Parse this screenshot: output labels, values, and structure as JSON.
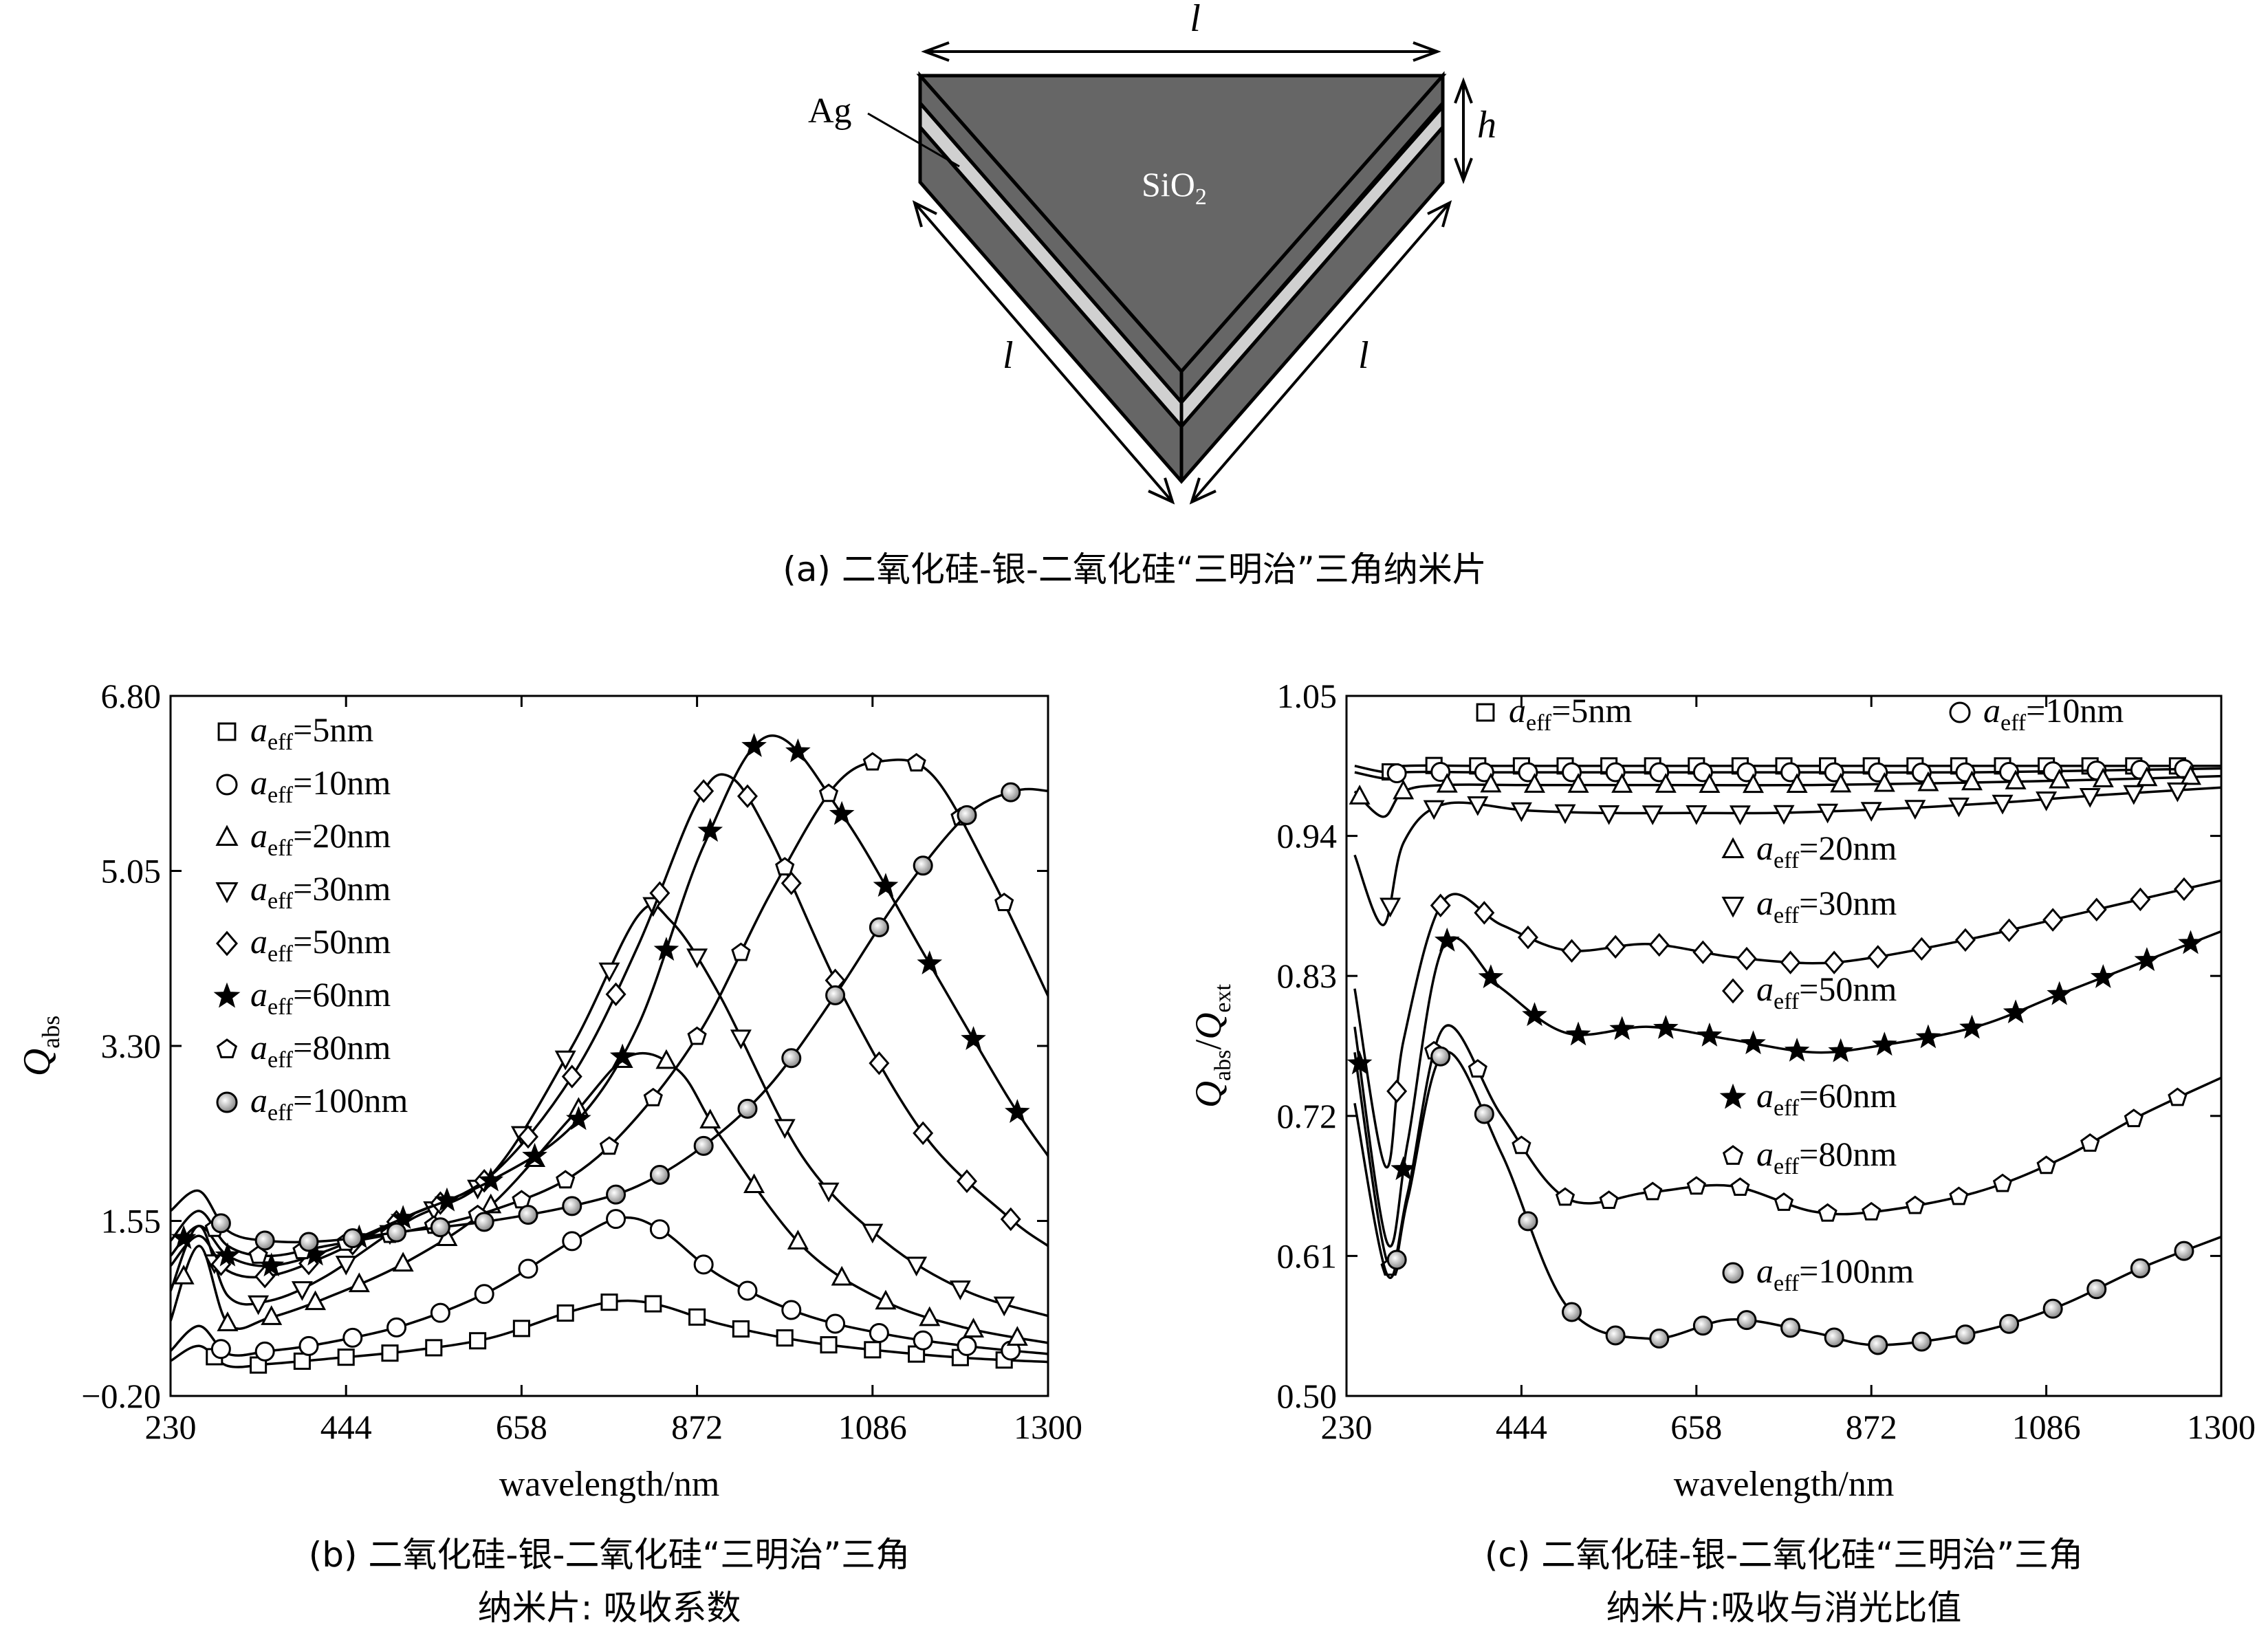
{
  "figure_a": {
    "caption": "(a) 二氧化硅-银-二氧化硅“三明治”三角纳米片",
    "label_top": "l",
    "label_left": "l",
    "label_right": "l",
    "label_h": "h",
    "label_ag": "Ag",
    "label_sio2_main": "SiO",
    "label_sio2_sub": "2",
    "colors": {
      "sio2": "#666666",
      "ag": "#d0d0d0",
      "outline": "#000000"
    }
  },
  "chart_b": {
    "caption_line1": "(b) 二氧化硅-银-二氧化硅“三明治”三角",
    "caption_line2": "纳米片: 吸收系数"
  },
  "chart_c": {
    "caption_line1": "(c) 二氧化硅-银-二氧化硅“三明治”三角",
    "caption_line2": "纳米片:吸收与消光比值"
  },
  "chart_data": [
    {
      "type": "line",
      "id": "b",
      "xlabel": "wavelength/nm",
      "ylabel_main": "Q",
      "ylabel_sub": "abs",
      "xlim": [
        230,
        1300
      ],
      "ylim": [
        -0.2,
        6.8
      ],
      "xticks": [
        "230",
        "444",
        "658",
        "872",
        "1086",
        "1300"
      ],
      "yticks": [
        "−0.20",
        "1.55",
        "3.30",
        "5.05",
        "6.80"
      ],
      "grid": false,
      "legend_position": "top-left",
      "series": [
        {
          "name": "a_eff=5nm",
          "legend_main": "a",
          "legend_sub": "eff",
          "legend_value": "=5nm",
          "marker": "square",
          "x": [
            230,
            265,
            300,
            350,
            420,
            520,
            620,
            720,
            780,
            830,
            900,
            1000,
            1100,
            1200,
            1300
          ],
          "y": [
            0.15,
            0.3,
            0.1,
            0.12,
            0.17,
            0.25,
            0.38,
            0.65,
            0.75,
            0.7,
            0.52,
            0.35,
            0.25,
            0.18,
            0.14
          ]
        },
        {
          "name": "a_eff=10nm",
          "legend_main": "a",
          "legend_sub": "eff",
          "legend_value": "=10nm",
          "marker": "circle",
          "x": [
            230,
            265,
            300,
            350,
            420,
            520,
            620,
            720,
            780,
            830,
            900,
            1000,
            1100,
            1200,
            1300
          ],
          "y": [
            0.25,
            0.5,
            0.22,
            0.25,
            0.33,
            0.52,
            0.85,
            1.35,
            1.58,
            1.45,
            1.0,
            0.62,
            0.42,
            0.3,
            0.22
          ]
        },
        {
          "name": "a_eff=20nm",
          "legend_main": "a",
          "legend_sub": "eff",
          "legend_value": "=20nm",
          "marker": "triangle-up",
          "x": [
            230,
            265,
            300,
            350,
            420,
            520,
            620,
            720,
            790,
            850,
            900,
            1000,
            1100,
            1200,
            1300
          ],
          "y": [
            0.55,
            1.3,
            0.52,
            0.58,
            0.78,
            1.15,
            1.7,
            2.6,
            3.2,
            3.05,
            2.4,
            1.3,
            0.75,
            0.48,
            0.33
          ]
        },
        {
          "name": "a_eff=30nm",
          "legend_main": "a",
          "legend_sub": "eff",
          "legend_value": "=30nm",
          "marker": "triangle-down",
          "x": [
            230,
            265,
            300,
            350,
            420,
            520,
            620,
            720,
            800,
            840,
            900,
            1000,
            1100,
            1200,
            1300
          ],
          "y": [
            0.85,
            1.5,
            0.8,
            0.75,
            1.0,
            1.55,
            2.0,
            3.3,
            4.6,
            4.55,
            3.8,
            2.2,
            1.35,
            0.85,
            0.6
          ]
        },
        {
          "name": "a_eff=50nm",
          "legend_main": "a",
          "legend_sub": "eff",
          "legend_value": "=50nm",
          "marker": "diamond",
          "x": [
            230,
            265,
            300,
            350,
            420,
            520,
            620,
            720,
            800,
            870,
            910,
            960,
            1050,
            1150,
            1250,
            1300
          ],
          "y": [
            1.1,
            1.4,
            1.05,
            1.0,
            1.2,
            1.6,
            2.0,
            3.0,
            4.3,
            5.7,
            6.0,
            5.4,
            3.8,
            2.4,
            1.6,
            1.3
          ]
        },
        {
          "name": "a_eff=60nm",
          "legend_main": "a",
          "legend_sub": "eff",
          "legend_value": "=60nm",
          "marker": "star",
          "x": [
            230,
            265,
            300,
            350,
            420,
            520,
            620,
            720,
            800,
            880,
            960,
            1050,
            1150,
            1250,
            1300
          ],
          "y": [
            1.2,
            1.5,
            1.2,
            1.1,
            1.25,
            1.6,
            1.95,
            2.5,
            3.5,
            5.3,
            6.4,
            5.6,
            4.2,
            2.8,
            2.2
          ]
        },
        {
          "name": "a_eff=80nm",
          "legend_main": "a",
          "legend_sub": "eff",
          "legend_value": "=80nm",
          "marker": "pentagon",
          "x": [
            230,
            265,
            300,
            350,
            420,
            520,
            620,
            720,
            800,
            880,
            960,
            1040,
            1100,
            1160,
            1230,
            1300
          ],
          "y": [
            1.35,
            1.65,
            1.3,
            1.2,
            1.3,
            1.45,
            1.65,
            2.0,
            2.6,
            3.5,
            4.8,
            5.9,
            6.15,
            6.0,
            5.0,
            3.8
          ]
        },
        {
          "name": "a_eff=100nm",
          "legend_main": "a",
          "legend_sub": "eff",
          "legend_value": "=100nm",
          "marker": "shaded-circle",
          "x": [
            230,
            265,
            300,
            350,
            420,
            520,
            620,
            720,
            800,
            880,
            960,
            1040,
            1120,
            1200,
            1260,
            1300
          ],
          "y": [
            1.65,
            1.85,
            1.45,
            1.35,
            1.35,
            1.45,
            1.55,
            1.7,
            1.9,
            2.3,
            2.9,
            3.8,
            4.8,
            5.6,
            5.85,
            5.85
          ]
        }
      ]
    },
    {
      "type": "line",
      "id": "c",
      "xlabel": "wavelength/nm",
      "ylabel_num_main": "Q",
      "ylabel_num_sub": "abs",
      "ylabel_den_main": "Q",
      "ylabel_den_sub": "ext",
      "xlim": [
        230,
        1300
      ],
      "ylim": [
        0.5,
        1.05
      ],
      "xticks": [
        "230",
        "444",
        "658",
        "872",
        "1086",
        "1300"
      ],
      "yticks": [
        "0.50",
        "0.61",
        "0.72",
        "0.83",
        "0.94",
        "1.05"
      ],
      "grid": false,
      "legend_position": "inline",
      "series": [
        {
          "name": "a_eff=5nm",
          "legend_main": "a",
          "legend_sub": "eff",
          "legend_value": "=5nm",
          "marker": "square",
          "x": [
            240,
            280,
            300,
            400,
            600,
            800,
            1000,
            1200,
            1300
          ],
          "y": [
            0.995,
            0.99,
            0.995,
            0.995,
            0.995,
            0.995,
            0.995,
            0.995,
            0.995
          ]
        },
        {
          "name": "a_eff=10nm",
          "legend_main": "a",
          "legend_sub": "eff",
          "legend_value": "=10nm",
          "marker": "circle",
          "x": [
            240,
            280,
            300,
            400,
            600,
            800,
            1000,
            1200,
            1300
          ],
          "y": [
            0.99,
            0.985,
            0.99,
            0.99,
            0.99,
            0.99,
            0.99,
            0.992,
            0.993
          ]
        },
        {
          "name": "a_eff=20nm",
          "legend_main": "a",
          "legend_sub": "eff",
          "legend_value": "=20nm",
          "marker": "triangle-up",
          "x": [
            240,
            275,
            300,
            350,
            450,
            600,
            800,
            1000,
            1200,
            1300
          ],
          "y": [
            0.975,
            0.955,
            0.975,
            0.98,
            0.98,
            0.98,
            0.98,
            0.982,
            0.985,
            0.987
          ]
        },
        {
          "name": "a_eff=30nm",
          "legend_main": "a",
          "legend_sub": "eff",
          "legend_value": "=30nm",
          "marker": "triangle-down",
          "x": [
            240,
            275,
            300,
            350,
            450,
            550,
            650,
            750,
            850,
            950,
            1050,
            1150,
            1300
          ],
          "y": [
            0.925,
            0.87,
            0.935,
            0.965,
            0.96,
            0.958,
            0.958,
            0.958,
            0.96,
            0.963,
            0.967,
            0.972,
            0.978
          ]
        },
        {
          "name": "a_eff=50nm",
          "legend_main": "a",
          "legend_sub": "eff",
          "legend_value": "=50nm",
          "marker": "diamond",
          "x": [
            240,
            278,
            300,
            350,
            420,
            500,
            600,
            700,
            800,
            880,
            1000,
            1100,
            1200,
            1300
          ],
          "y": [
            0.82,
            0.68,
            0.78,
            0.89,
            0.87,
            0.85,
            0.855,
            0.845,
            0.84,
            0.845,
            0.86,
            0.875,
            0.89,
            0.905
          ]
        },
        {
          "name": "a_eff=60nm",
          "legend_main": "a",
          "legend_sub": "eff",
          "legend_value": "=60nm",
          "marker": "star",
          "x": [
            240,
            280,
            305,
            350,
            420,
            500,
            600,
            700,
            800,
            880,
            1000,
            1100,
            1200,
            1300
          ],
          "y": [
            0.79,
            0.62,
            0.7,
            0.855,
            0.82,
            0.785,
            0.79,
            0.78,
            0.77,
            0.775,
            0.79,
            0.815,
            0.84,
            0.865
          ]
        },
        {
          "name": "a_eff=80nm",
          "legend_main": "a",
          "legend_sub": "eff",
          "legend_value": "=80nm",
          "marker": "pentagon",
          "x": [
            240,
            280,
            305,
            350,
            420,
            500,
            600,
            700,
            800,
            880,
            1000,
            1100,
            1200,
            1300
          ],
          "y": [
            0.77,
            0.605,
            0.66,
            0.79,
            0.72,
            0.655,
            0.66,
            0.665,
            0.645,
            0.645,
            0.66,
            0.685,
            0.72,
            0.75
          ]
        },
        {
          "name": "a_eff=100nm",
          "legend_main": "a",
          "legend_sub": "eff",
          "legend_value": "=100nm",
          "marker": "shaded-circle",
          "x": [
            240,
            280,
            305,
            350,
            420,
            500,
            600,
            700,
            800,
            880,
            1000,
            1100,
            1200,
            1300
          ],
          "y": [
            0.73,
            0.595,
            0.655,
            0.77,
            0.69,
            0.57,
            0.545,
            0.56,
            0.55,
            0.54,
            0.55,
            0.57,
            0.6,
            0.625
          ]
        }
      ],
      "legend_order_note": ""
    }
  ]
}
